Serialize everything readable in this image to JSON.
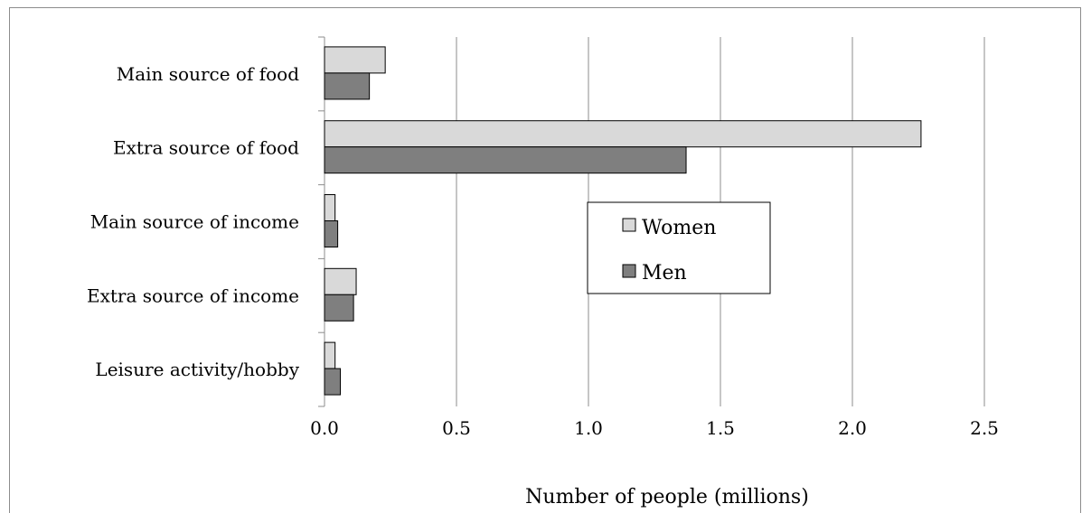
{
  "chart_data": {
    "type": "bar",
    "orientation": "horizontal",
    "categories": [
      "Main source of food",
      "Extra source of food",
      "Main source of income",
      "Extra source of income",
      "Leisure activity/hobby"
    ],
    "series": [
      {
        "name": "Women",
        "color": "#d9d9d9",
        "values": [
          0.23,
          2.26,
          0.04,
          0.12,
          0.04
        ]
      },
      {
        "name": "Men",
        "color": "#7f7f7f",
        "values": [
          0.17,
          1.37,
          0.05,
          0.11,
          0.06
        ]
      }
    ],
    "xlim": [
      0,
      2.5
    ],
    "xticks": [
      "0.0",
      "0.5",
      "1.0",
      "1.5",
      "2.0",
      "2.5"
    ],
    "xlabel": "Number of people (millions)",
    "ylabel": "",
    "title": "",
    "grid": "vertical",
    "legend": {
      "placement": "center",
      "entries": [
        "Women",
        "Men"
      ]
    }
  }
}
